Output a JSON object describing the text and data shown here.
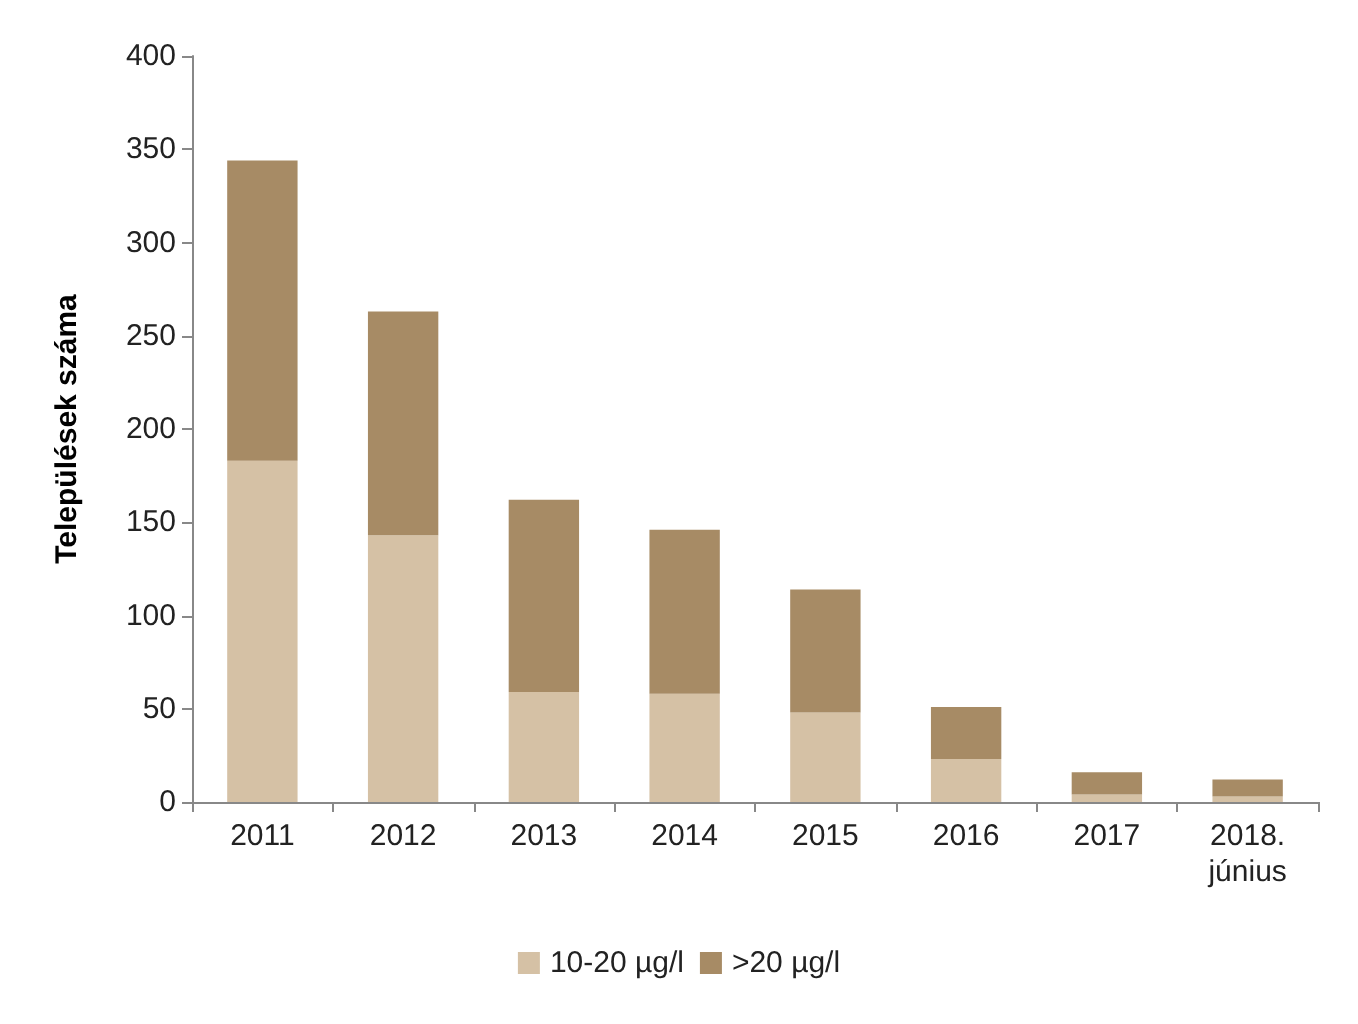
{
  "chart_data": {
    "type": "bar",
    "stacked": true,
    "ylabel": "Települések száma",
    "categories": [
      "2011",
      "2012",
      "2013",
      "2014",
      "2015",
      "2016",
      "2017",
      "2018.\njúnius"
    ],
    "series": [
      {
        "name": "10-20 µg/l",
        "color": "#d5c1a5",
        "values": [
          183,
          143,
          59,
          58,
          48,
          23,
          4,
          3
        ]
      },
      {
        "name": ">20 µg/l",
        "color": "#a78b65",
        "values": [
          161,
          120,
          103,
          88,
          66,
          28,
          12,
          9
        ]
      }
    ],
    "ylim": [
      0,
      400
    ],
    "yticks": [
      0,
      50,
      100,
      150,
      200,
      250,
      300,
      350,
      400
    ],
    "grid": false,
    "legend": "bottom"
  }
}
